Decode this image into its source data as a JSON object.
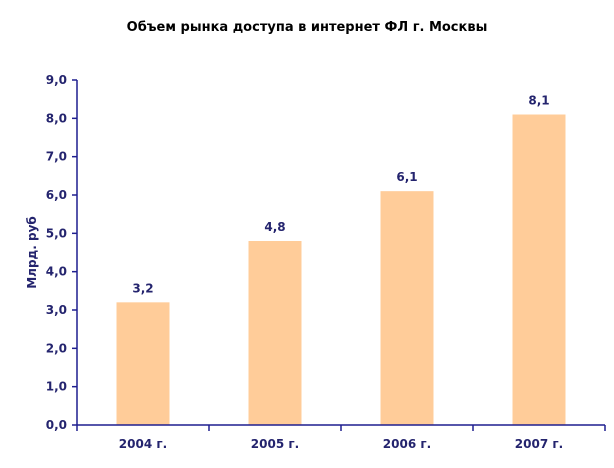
{
  "chart_data": {
    "type": "bar",
    "title": "Объем рынка доступа в интернет ФЛ г. Москвы",
    "xlabel": "",
    "ylabel": "Млрд. руб",
    "categories": [
      "2004 г.",
      "2005 г.",
      "2006 г.",
      "2007 г."
    ],
    "values": [
      3.2,
      4.8,
      6.1,
      8.1
    ],
    "data_labels": [
      "3,2",
      "4,8",
      "6,1",
      "8,1"
    ],
    "ylim": [
      0,
      9
    ],
    "yticks": [
      0,
      1,
      2,
      3,
      4,
      5,
      6,
      7,
      8,
      9
    ],
    "ytick_labels": [
      "0,0",
      "1,0",
      "2,0",
      "3,0",
      "4,0",
      "5,0",
      "6,0",
      "7,0",
      "8,0",
      "9,0"
    ],
    "grid": false,
    "legend": "none",
    "colors": {
      "bar": "#FFCC99",
      "axis": "#1F1F8F",
      "text": "#24246E"
    }
  }
}
